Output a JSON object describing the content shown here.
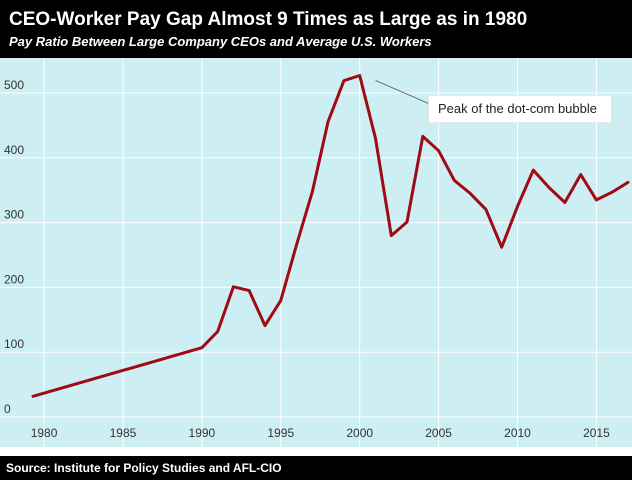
{
  "header": {
    "title": "CEO-Worker Pay Gap Almost 9 Times as Large as in 1980",
    "subtitle": "Pay Ratio Between Large Company CEOs and Average U.S. Workers"
  },
  "footer": {
    "source": "Source: Institute for Policy Studies and AFL-CIO"
  },
  "colors": {
    "header_bg": "#000000",
    "plot_bg": "#cdeef2",
    "line": "#a00a14",
    "grid": "#ffffff"
  },
  "chart_data": {
    "type": "line",
    "title": "CEO-Worker Pay Gap Almost 9 Times as Large as in 1980",
    "subtitle": "Pay Ratio Between Large Company CEOs and Average U.S. Workers",
    "xlabel": "",
    "ylabel": "",
    "xlim": [
      1979.3,
      2017
    ],
    "ylim": [
      -10,
      540
    ],
    "x_ticks": [
      "1980",
      "1985",
      "1990",
      "1995",
      "2000",
      "2005",
      "2010",
      "2015"
    ],
    "y_ticks": [
      "0",
      "100",
      "200",
      "300",
      "400",
      "500"
    ],
    "grid": true,
    "legend": "none",
    "series": [
      {
        "x": [
          1979.3,
          1990,
          1991,
          1992,
          1993,
          1994,
          1995,
          1996,
          1997,
          1998,
          1999,
          2000,
          2001,
          2002,
          2003,
          2004,
          2005,
          2006,
          2007,
          2008,
          2009,
          2010,
          2011,
          2012,
          2013,
          2014,
          2015,
          2016,
          2017
        ],
        "y": [
          32,
          107,
          132,
          201,
          195,
          141,
          180,
          266,
          348,
          456,
          519,
          527,
          430,
          280,
          301,
          433,
          411,
          365,
          345,
          320,
          262,
          325,
          381,
          354,
          331,
          374,
          335,
          347,
          362
        ]
      }
    ],
    "annotations": [
      {
        "text": "Peak of the dot-com bubble",
        "x": 2000.5,
        "y": 527
      }
    ]
  }
}
